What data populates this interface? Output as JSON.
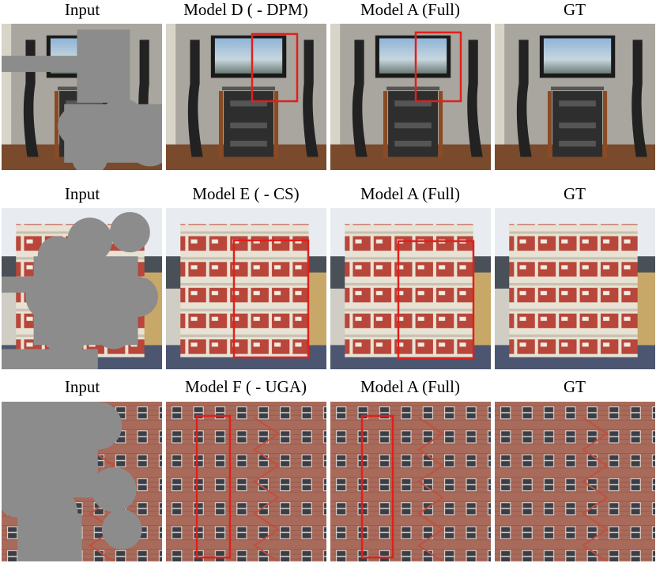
{
  "rows": [
    {
      "labels": [
        "Input",
        "Model D ( - DPM)",
        "Model A (Full)",
        "GT"
      ]
    },
    {
      "labels": [
        "Input",
        "Model E ( - CS)",
        "Model A (Full)",
        "GT"
      ]
    },
    {
      "labels": [
        "Input",
        "Model F ( - UGA)",
        "Model A (Full)",
        "GT"
      ]
    }
  ]
}
